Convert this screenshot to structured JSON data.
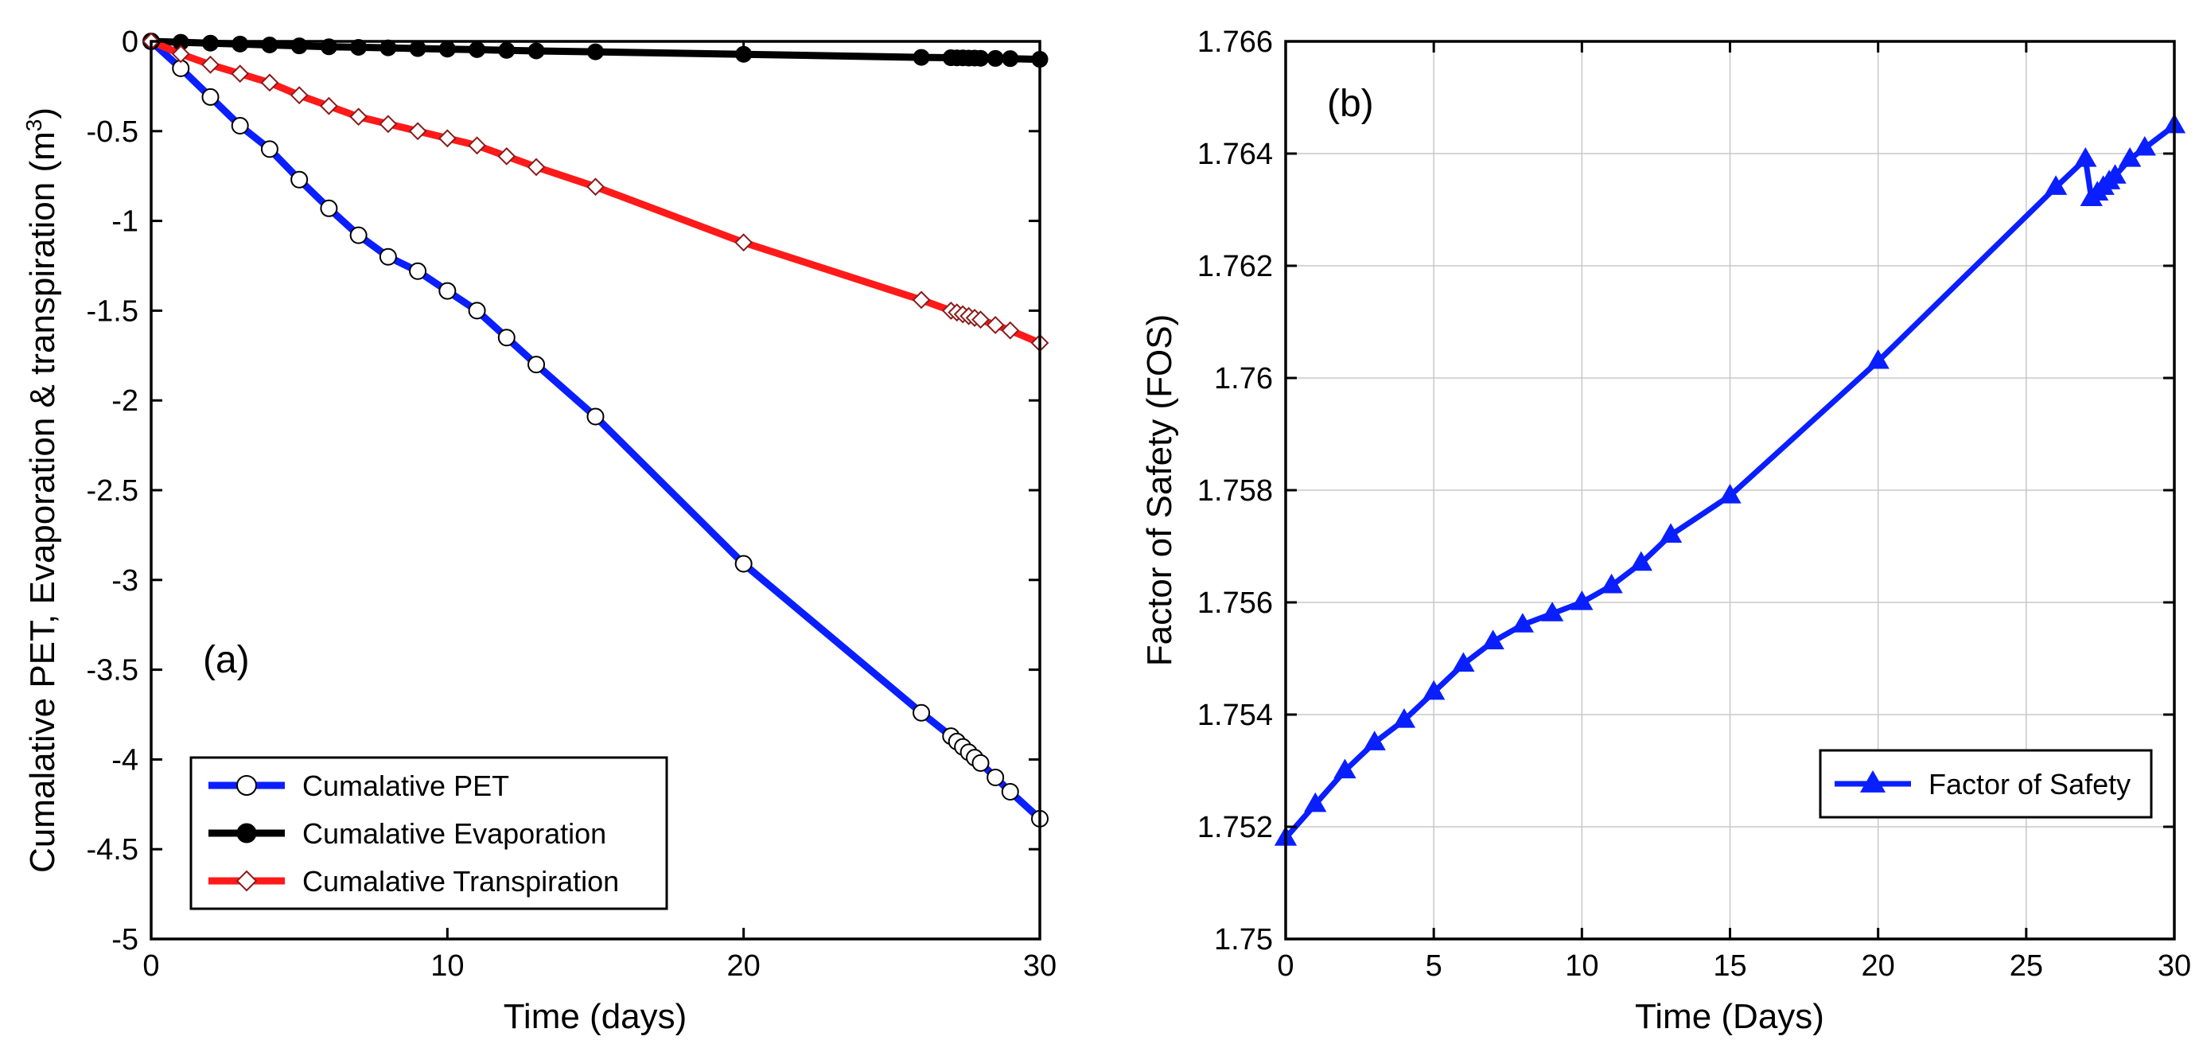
{
  "chart_data": [
    {
      "type": "line",
      "panel_label": "(a)",
      "xlabel": "Time (days)",
      "ylabel": "Cumalative PET, Evaporation & transpiration (m",
      "ylabel_sup": "3",
      "ylabel_close": ")",
      "xlim": [
        0,
        30
      ],
      "ylim": [
        -5,
        0
      ],
      "xticks": [
        0,
        10,
        20,
        30
      ],
      "xtick_labels": [
        "0",
        "10",
        "20",
        "30"
      ],
      "yticks": [
        0,
        -0.5,
        -1,
        -1.5,
        -2,
        -2.5,
        -3,
        -3.5,
        -4,
        -4.5,
        -5
      ],
      "ytick_labels": [
        "0",
        "-0.5",
        "-1",
        "-1.5",
        "-2",
        "-2.5",
        "-3",
        "-3.5",
        "-4",
        "-4.5",
        "-5"
      ],
      "grid": false,
      "legend_position": "bottom-left",
      "series": [
        {
          "name": "Cumalative PET",
          "color": "#0a1fff",
          "marker": "open-circle",
          "x": [
            0,
            1,
            2,
            3,
            4,
            5,
            6,
            7,
            8,
            9,
            10,
            11,
            12,
            13,
            15,
            20,
            26,
            27,
            27.2,
            27.4,
            27.6,
            27.8,
            28,
            28.5,
            29,
            30
          ],
          "y": [
            0,
            -0.15,
            -0.31,
            -0.47,
            -0.6,
            -0.77,
            -0.93,
            -1.08,
            -1.2,
            -1.28,
            -1.39,
            -1.5,
            -1.65,
            -1.8,
            -2.09,
            -2.91,
            -3.74,
            -3.87,
            -3.9,
            -3.93,
            -3.96,
            -3.99,
            -4.02,
            -4.1,
            -4.18,
            -4.33
          ]
        },
        {
          "name": "Cumalative Evaporation",
          "color": "#000000",
          "marker": "filled-circle",
          "x": [
            0,
            1,
            2,
            3,
            4,
            5,
            6,
            7,
            8,
            9,
            10,
            11,
            12,
            13,
            15,
            20,
            26,
            27,
            27.2,
            27.4,
            27.6,
            27.8,
            28,
            28.5,
            29,
            30
          ],
          "y": [
            0,
            -0.005,
            -0.01,
            -0.015,
            -0.02,
            -0.025,
            -0.03,
            -0.033,
            -0.036,
            -0.04,
            -0.043,
            -0.046,
            -0.05,
            -0.053,
            -0.058,
            -0.072,
            -0.089,
            -0.091,
            -0.092,
            -0.092,
            -0.093,
            -0.093,
            -0.094,
            -0.095,
            -0.096,
            -0.1
          ]
        },
        {
          "name": "Cumalative Transpiration",
          "color": "#ff1a1a",
          "marker": "open-diamond",
          "x": [
            0,
            1,
            2,
            3,
            4,
            5,
            6,
            7,
            8,
            9,
            10,
            11,
            12,
            13,
            15,
            20,
            26,
            27,
            27.2,
            27.4,
            27.6,
            27.8,
            28,
            28.5,
            29,
            30
          ],
          "y": [
            0,
            -0.07,
            -0.13,
            -0.18,
            -0.23,
            -0.3,
            -0.36,
            -0.42,
            -0.46,
            -0.5,
            -0.54,
            -0.58,
            -0.64,
            -0.7,
            -0.81,
            -1.12,
            -1.44,
            -1.5,
            -1.51,
            -1.52,
            -1.53,
            -1.54,
            -1.55,
            -1.58,
            -1.61,
            -1.68
          ]
        }
      ]
    },
    {
      "type": "line",
      "panel_label": "(b)",
      "xlabel": "Time (Days)",
      "ylabel": "Factor of Safety (FOS)",
      "xlim": [
        0,
        30
      ],
      "ylim": [
        1.75,
        1.766
      ],
      "xticks": [
        0,
        5,
        10,
        15,
        20,
        25,
        30
      ],
      "xtick_labels": [
        "0",
        "5",
        "10",
        "15",
        "20",
        "25",
        "30"
      ],
      "yticks": [
        1.75,
        1.752,
        1.754,
        1.756,
        1.758,
        1.76,
        1.762,
        1.764,
        1.766
      ],
      "ytick_labels": [
        "1.75",
        "1.752",
        "1.754",
        "1.756",
        "1.758",
        "1.76",
        "1.762",
        "1.764",
        "1.766"
      ],
      "grid": true,
      "legend_position": "right",
      "series": [
        {
          "name": "Factor of Safety",
          "color": "#0a1fff",
          "marker": "filled-triangle",
          "x": [
            0,
            1,
            2,
            3,
            4,
            5,
            6,
            7,
            8,
            9,
            10,
            11,
            12,
            13,
            15,
            20,
            26,
            27,
            27.2,
            27.4,
            27.6,
            27.8,
            28,
            28.5,
            29,
            30
          ],
          "y": [
            1.7518,
            1.7524,
            1.753,
            1.7535,
            1.7539,
            1.7544,
            1.7549,
            1.7553,
            1.7556,
            1.7558,
            1.756,
            1.7563,
            1.7567,
            1.7572,
            1.7579,
            1.7603,
            1.7634,
            1.7639,
            1.7632,
            1.7633,
            1.7634,
            1.7635,
            1.7636,
            1.7639,
            1.7641,
            1.7645
          ]
        }
      ]
    }
  ]
}
